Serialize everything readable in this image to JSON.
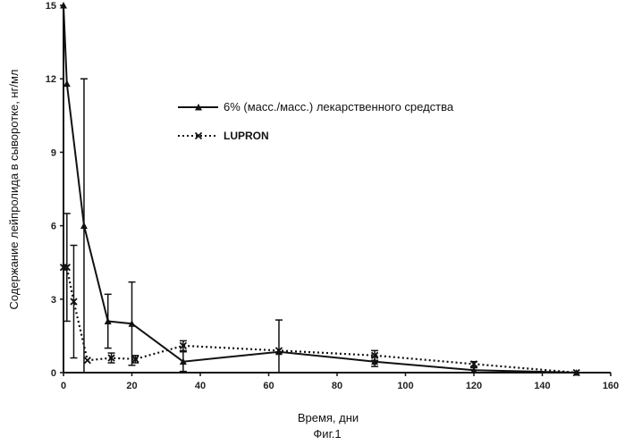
{
  "chart_data": {
    "type": "line",
    "xlabel": "Время, дни",
    "ylabel": "Содержание лейпролида в сыворотке, нг/мл",
    "caption": "Фиг.1",
    "xlim": [
      0,
      160
    ],
    "ylim": [
      0,
      15
    ],
    "x_ticks": [
      "0",
      "20",
      "40",
      "60",
      "80",
      "100",
      "120",
      "140",
      "160"
    ],
    "y_ticks": [
      "0",
      "3",
      "6",
      "9",
      "12",
      "15"
    ],
    "grid": false,
    "legend_position": "top-right",
    "series": [
      {
        "name": "6% (масс./масс.) лекарственного  средства",
        "style": "solid",
        "marker": "triangle",
        "color": "#111111",
        "x": [
          0,
          1,
          6,
          13,
          20,
          35,
          63,
          91,
          120,
          150
        ],
        "y": [
          15,
          11.8,
          6,
          2.1,
          2,
          0.45,
          0.85,
          0.45,
          0.1,
          0
        ],
        "error": [
          null,
          null,
          6,
          1.1,
          1.7,
          0.4,
          1.3,
          0.2,
          0.1,
          null
        ]
      },
      {
        "name": "LUPRON",
        "style": "dotted",
        "marker": "x",
        "color": "#111111",
        "x": [
          0,
          1,
          3,
          7,
          14,
          21,
          35,
          63,
          91,
          120,
          150
        ],
        "y": [
          4.3,
          4.3,
          2.9,
          0.5,
          0.6,
          0.55,
          1.1,
          0.9,
          0.7,
          0.35,
          0
        ],
        "error": [
          null,
          2.2,
          2.3,
          null,
          0.2,
          0.15,
          0.2,
          null,
          0.2,
          0.1,
          null
        ]
      }
    ]
  }
}
